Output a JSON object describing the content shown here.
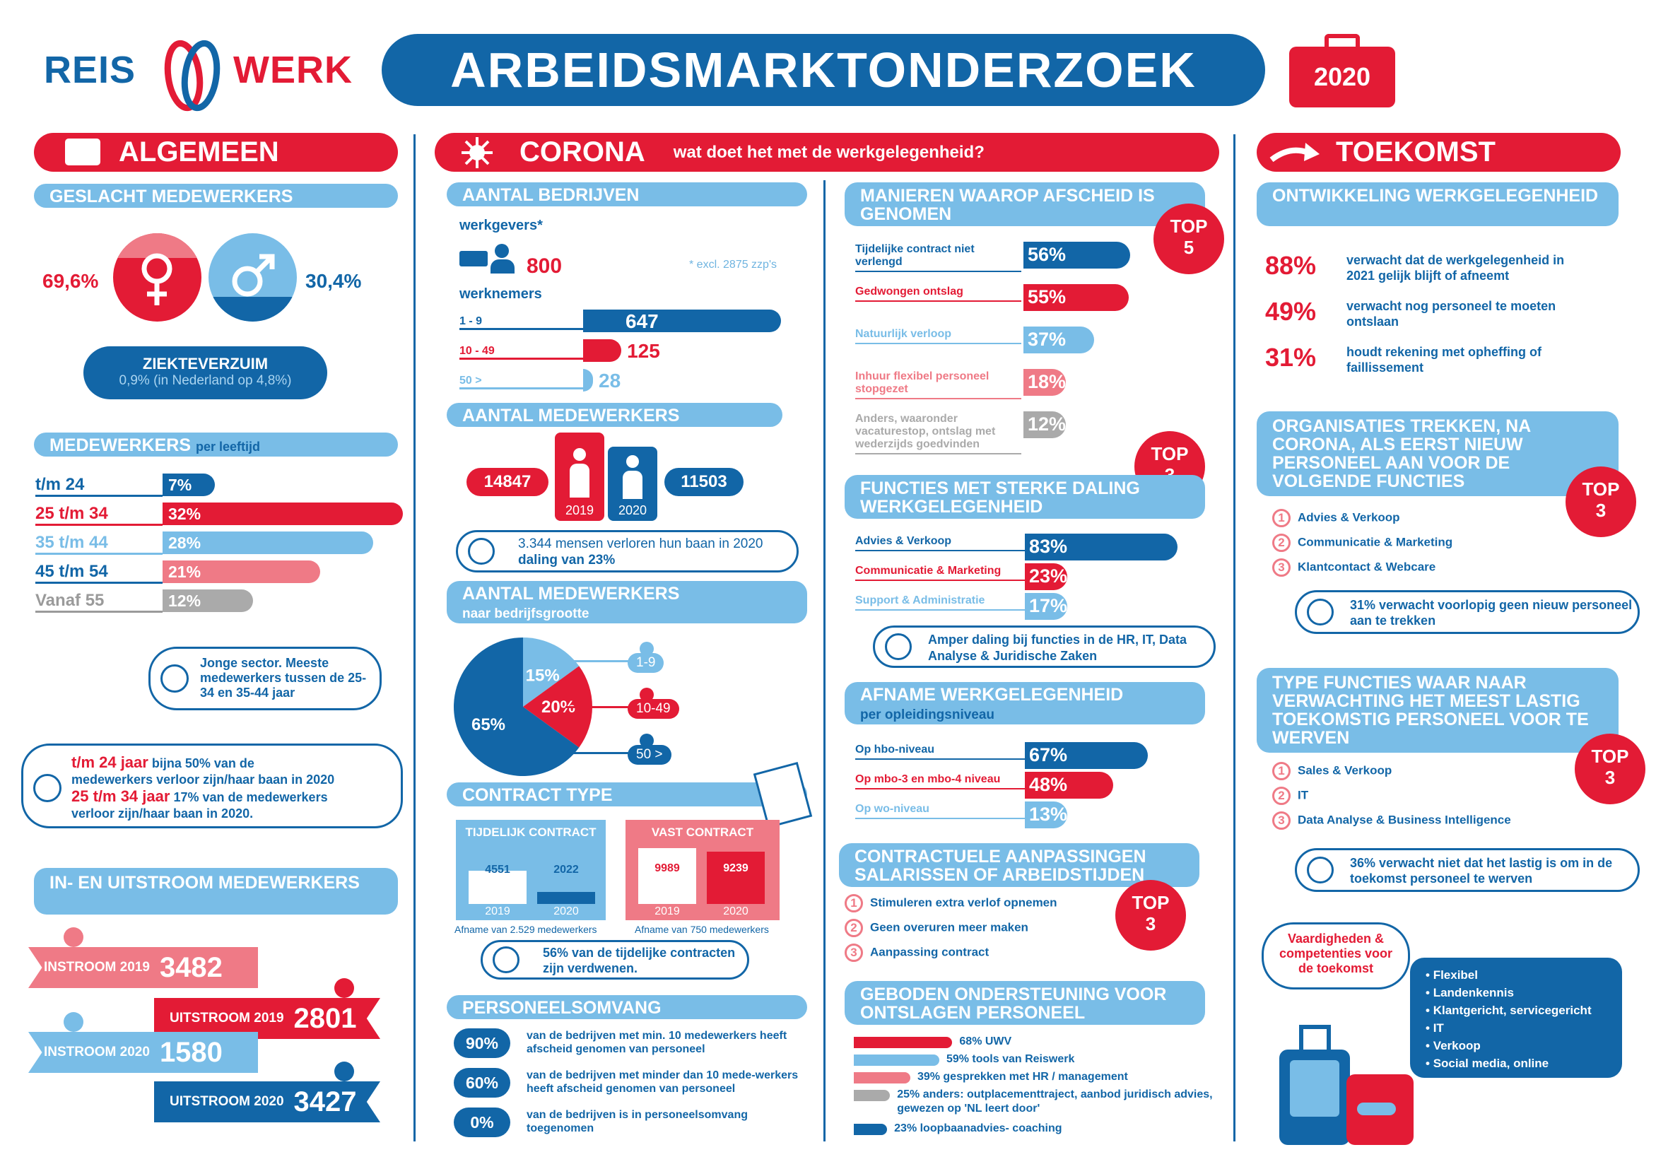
{
  "header": {
    "logo_left": "REIS",
    "logo_right": "WERK",
    "title": "ARBEIDSMARKTONDERZOEK",
    "year": "2020"
  },
  "algemeen": {
    "title": "ALGEMEEN",
    "gender": {
      "title": "GESLACHT MEDEWERKERS",
      "female": "69,6%",
      "male": "30,4%"
    },
    "ziekte": {
      "title": "ZIEKTEVERZUIM",
      "text": "0,9% (in Nederland op 4,8%)"
    },
    "leeftijd": {
      "title": "MEDEWERKERS",
      "title_sub": "per leeftijd",
      "rows": [
        {
          "label": "t/m 24",
          "value": "7%"
        },
        {
          "label": "25 t/m 34",
          "value": "32%"
        },
        {
          "label": "35 t/m 44",
          "value": "28%"
        },
        {
          "label": "45 t/m 54",
          "value": "21%"
        },
        {
          "label": "Vanaf 55",
          "value": "12%"
        }
      ],
      "note": "Jonge sector. Meeste medewerkers tussen de 25-34 en 35-44 jaar"
    },
    "verlies": {
      "l1a": "t/m 24 jaar",
      "l1b": "bijna 50% van de",
      "l1c": "medewerkers verloor zijn/haar baan in 2020",
      "l2a": "25 t/m 34 jaar",
      "l2b": "17% van de medewerkers",
      "l2c": "verloor zijn/haar baan in 2020."
    },
    "stroom": {
      "title": "IN- EN UITSTROOM MEDEWERKERS",
      "items": [
        {
          "label": "INSTROOM 2019",
          "value": "3482"
        },
        {
          "label": "UITSTROOM 2019",
          "value": "2801"
        },
        {
          "label": "INSTROOM 2020",
          "value": "1580"
        },
        {
          "label": "UITSTROOM 2020",
          "value": "3427"
        }
      ]
    }
  },
  "corona": {
    "title": "CORONA",
    "subtitle": "wat doet het met de werkgelegenheid?",
    "bedrijven": {
      "title": "AANTAL BEDRIJVEN",
      "werkgevers_label": "werkgevers*",
      "werkgevers_value": "800",
      "footnote": "* excl. 2875 zzp's",
      "werknemers_label": "werknemers",
      "rows": [
        {
          "label": "1 - 9",
          "value": "647"
        },
        {
          "label": "10 - 49",
          "value": "125"
        },
        {
          "label": "50 >",
          "value": "28"
        }
      ]
    },
    "medewerkers": {
      "title": "AANTAL MEDEWERKERS",
      "v2019": "14847",
      "v2020": "11503",
      "y2019": "2019",
      "y2020": "2020",
      "note_a": "3.344 mensen verloren hun baan in",
      "note_b": "2020",
      "note_c": "daling van 23%"
    },
    "grootte": {
      "title": "AANTAL MEDEWERKERS",
      "sub": "naar bedrijfsgrootte",
      "slices": [
        {
          "label": "1-9",
          "value": "15%"
        },
        {
          "label": "10-49",
          "value": "20%"
        },
        {
          "label": "50 >",
          "value": "65%"
        }
      ]
    },
    "contract": {
      "title": "CONTRACT TYPE",
      "tijdelijk": {
        "title": "TIJDELIJK CONTRACT",
        "v2019": "4551",
        "v2020": "2022",
        "y1": "2019",
        "y2": "2020",
        "note": "Afname van 2.529 medewerkers"
      },
      "vast": {
        "title": "VAST CONTRACT",
        "v2019": "9989",
        "v2020": "9239",
        "y1": "2019",
        "y2": "2020",
        "note": "Afname van 750 medewerkers"
      },
      "bubble": "56% van de tijdelijke contracten zijn verdwenen."
    },
    "omvang": {
      "title": "PERSONEELSOMVANG",
      "rows": [
        {
          "value": "90%",
          "text": "van de bedrijven met min. 10 medewerkers heeft afscheid genomen van personeel"
        },
        {
          "value": "60%",
          "text": "van de bedrijven met minder dan 10 mede-werkers heeft afscheid genomen van personeel"
        },
        {
          "value": "0%",
          "text": "van de bedrijven is in personeelsomvang toegenomen"
        }
      ]
    },
    "afscheid": {
      "title": "MANIEREN WAAROP AFSCHEID IS GENOMEN",
      "top_a": "TOP",
      "top_b": "5",
      "rows": [
        {
          "label": "Tijdelijke contract niet verlengd",
          "value": "56%"
        },
        {
          "label": "Gedwongen ontslag",
          "value": "55%"
        },
        {
          "label": "Natuurlijk verloop",
          "value": "37%"
        },
        {
          "label": "Inhuur flexibel personeel stopgezet",
          "value": "18%"
        },
        {
          "label": "Anders, waaronder vacaturestop, ontslag met wederzijds goedvinden",
          "value": "12%"
        }
      ]
    },
    "functies": {
      "title": "FUNCTIES MET STERKE DALING WERKGELEGENHEID",
      "top_a": "TOP",
      "top_b": "3",
      "rows": [
        {
          "label": "Advies & Verkoop",
          "value": "83%"
        },
        {
          "label": "Communicatie & Marketing",
          "value": "23%"
        },
        {
          "label": "Support & Administratie",
          "value": "17%"
        }
      ],
      "note": "Amper daling bij functies in de HR, IT, Data Analyse & Juridische Zaken"
    },
    "opleiding": {
      "title": "AFNAME WERKGELEGENHEID",
      "sub": "per opleidingsniveau",
      "rows": [
        {
          "label": "Op hbo-niveau",
          "value": "67%"
        },
        {
          "label": "Op mbo-3 en mbo-4 niveau",
          "value": "48%"
        },
        {
          "label": "Op wo-niveau",
          "value": "13%"
        }
      ]
    },
    "aanpassing": {
      "title": "CONTRACTUELE AANPASSINGEN SALARISSEN OF ARBEIDSTIJDEN",
      "top_a": "TOP",
      "top_b": "3",
      "items": [
        "Stimuleren extra verlof opnemen",
        "Geen overuren meer maken",
        "Aanpassing contract"
      ]
    },
    "ondersteuning": {
      "title": "GEBODEN ONDERSTEUNING VOOR ONTSLAGEN PERSONEEL",
      "rows": [
        {
          "text": "68% UWV"
        },
        {
          "text": "59% tools van Reiswerk"
        },
        {
          "text": "39% gesprekken met HR / management"
        },
        {
          "text": "25% anders: outplacementtraject, aanbod juridisch advies, gewezen op 'NL leert door'"
        },
        {
          "text": "23% loopbaanadvies- coaching"
        }
      ]
    }
  },
  "toekomst": {
    "title": "TOEKOMST",
    "ontwikkeling": {
      "title": "ONTWIKKELING WERKGELEGENHEID",
      "rows": [
        {
          "value": "88%",
          "text": "verwacht dat de werkgelegenheid in 2021 gelijk blijft of afneemt"
        },
        {
          "value": "49%",
          "text": "verwacht nog personeel te moeten ontslaan"
        },
        {
          "value": "31%",
          "text": "houdt rekening met opheffing of faillissement"
        }
      ]
    },
    "organisaties": {
      "title": "ORGANISATIES TREKKEN, NA CORONA, ALS EERST NIEUW PERSONEEL AAN VOOR DE VOLGENDE FUNCTIES",
      "top_a": "TOP",
      "top_b": "3",
      "items": [
        "Advies & Verkoop",
        "Communicatie & Marketing",
        "Klantcontact & Webcare"
      ],
      "note": "31% verwacht voorlopig geen nieuw personeel aan te trekken"
    },
    "lastig": {
      "title": "TYPE FUNCTIES WAAR NAAR VERWACHTING HET MEEST LASTIG TOEKOMSTIG PERSONEEL VOOR TE WERVEN",
      "top_a": "TOP",
      "top_b": "3",
      "items": [
        "Sales & Verkoop",
        "IT",
        "Data Analyse & Business Intelligence"
      ],
      "note": "36% verwacht niet dat het lastig is om in de toekomst personeel te werven"
    },
    "vaardig": {
      "title": "Vaardigheden & competenties voor de toekomst",
      "items": [
        "Flexibel",
        "Landenkennis",
        "Klantgericht, servicegericht",
        "IT",
        "Verkoop",
        "Social media, online"
      ]
    }
  }
}
